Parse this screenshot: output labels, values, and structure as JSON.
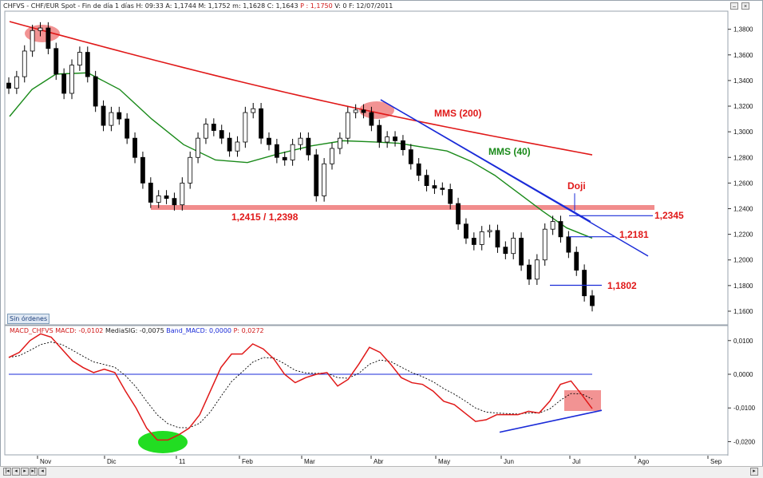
{
  "header": {
    "symbol": "CHFVS - CHF/EUR Spot - Fin de día 1 días",
    "h": "H: 09:33",
    "a": "A: 1,1744",
    "m": "M: 1,1752",
    "min": "m: 1,1628",
    "c": "C: 1,1643",
    "p": "P : 1,1750",
    "v": "V: 0",
    "f": "F: 12/07/2011"
  },
  "buttons": {
    "orders": "Sin órdenes",
    "minimize": "–",
    "close": "×"
  },
  "macd_header": {
    "name": "MACD_CHFVS",
    "macd": "MACD: -0,0102",
    "sig": "MediaSIG: -0,0075",
    "band": "Band_MACD: 0,0000",
    "p": "P: 0,0272"
  },
  "colors": {
    "price_candle": "#000000",
    "mms200": "#e01818",
    "mms40": "#1a8a1a",
    "trendline": "#1a2bd8",
    "support_band": "#f08080",
    "highlight": "#f08080",
    "highlight_green": "#22dd22",
    "macd_line": "#e01818",
    "signal_line": "#000000",
    "zero_line": "#1a2bd8"
  },
  "chart_data": [
    {
      "type": "candlestick",
      "x_ticks": [
        "Nov",
        "Dic",
        "11",
        "Feb",
        "Mar",
        "Abr",
        "May",
        "Jun",
        "Jul",
        "Ago",
        "Sep"
      ],
      "y_ticks": [
        "1,3800",
        "1,3600",
        "1,3400",
        "1,3200",
        "1,3000",
        "1,2800",
        "1,2600",
        "1,2400",
        "1,2200",
        "1,2000",
        "1,1800",
        "1,1600"
      ],
      "ylim": [
        1.155,
        1.391
      ],
      "series_close": [
        1.334,
        1.343,
        1.363,
        1.379,
        1.381,
        1.365,
        1.345,
        1.33,
        1.352,
        1.362,
        1.343,
        1.32,
        1.305,
        1.315,
        1.31,
        1.295,
        1.28,
        1.26,
        1.245,
        1.25,
        1.248,
        1.243,
        1.26,
        1.28,
        1.295,
        1.306,
        1.301,
        1.295,
        1.285,
        1.292,
        1.315,
        1.318,
        1.295,
        1.29,
        1.28,
        1.278,
        1.29,
        1.295,
        1.282,
        1.25,
        1.275,
        1.287,
        1.295,
        1.315,
        1.317,
        1.315,
        1.305,
        1.292,
        1.296,
        1.293,
        1.286,
        1.275,
        1.266,
        1.258,
        1.256,
        1.255,
        1.244,
        1.228,
        1.217,
        1.212,
        1.222,
        1.223,
        1.21,
        1.205,
        1.217,
        1.196,
        1.185,
        1.2,
        1.224,
        1.23,
        1.218,
        1.206,
        1.192,
        1.172,
        1.1643
      ],
      "support_level": "1,2415 / 1,2398",
      "annotations": [
        {
          "text": "MMS (200)",
          "kind": "ma_label"
        },
        {
          "text": "MMS (40)",
          "kind": "ma_label"
        },
        {
          "text": "Doji",
          "kind": "pattern"
        },
        {
          "text": "1,2345",
          "kind": "level"
        },
        {
          "text": "1,2181",
          "kind": "level"
        },
        {
          "text": "1,1802",
          "kind": "level"
        }
      ],
      "series": [
        {
          "name": "MMS (200)"
        },
        {
          "name": "MMS (40)"
        }
      ]
    },
    {
      "type": "line",
      "y_ticks": [
        "0,0100",
        "0,0000",
        "-0,0100",
        "-0,0200"
      ],
      "ylim": [
        -0.0225,
        0.0135
      ],
      "macd_values": [
        0.005,
        0.0065,
        0.01,
        0.012,
        0.011,
        0.0075,
        0.004,
        0.002,
        0.0005,
        0.0015,
        0.0005,
        -0.005,
        -0.01,
        -0.016,
        -0.0195,
        -0.0195,
        -0.018,
        -0.016,
        -0.012,
        -0.005,
        0.002,
        0.006,
        0.006,
        0.009,
        0.0075,
        0.0045,
        0.0,
        -0.0025,
        -0.001,
        0.0,
        0.0005,
        -0.0035,
        -0.0015,
        0.003,
        0.008,
        0.0065,
        0.003,
        -0.001,
        -0.0025,
        -0.003,
        -0.005,
        -0.008,
        -0.009,
        -0.0115,
        -0.014,
        -0.0135,
        -0.012,
        -0.012,
        -0.012,
        -0.011,
        -0.0115,
        -0.008,
        -0.003,
        -0.002,
        -0.006,
        -0.0102
      ]
    }
  ]
}
